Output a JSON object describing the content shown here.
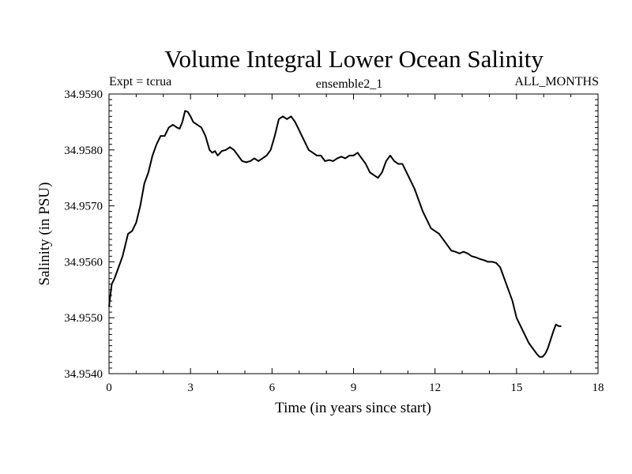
{
  "chart_data": {
    "type": "line",
    "title": "Volume Integral Lower Ocean Salinity",
    "subtitle_left": "Expt = tcrua",
    "subtitle_center": "ensemble2_1",
    "subtitle_right": "ALL_MONTHS",
    "xlabel": "Time (in years since start)",
    "ylabel": "Salinity (in PSU)",
    "xlim": [
      0,
      18
    ],
    "ylim": [
      34.954,
      34.959
    ],
    "x_ticks": [
      0,
      3,
      6,
      9,
      12,
      15,
      18
    ],
    "x_tick_labels": [
      "0",
      "3",
      "6",
      "9",
      "12",
      "15",
      "18"
    ],
    "y_ticks": [
      34.954,
      34.955,
      34.956,
      34.957,
      34.958,
      34.959
    ],
    "y_tick_labels": [
      "34.9540",
      "34.9550",
      "34.9560",
      "34.9570",
      "34.9580",
      "34.9590"
    ],
    "grid": false,
    "series": [
      {
        "name": "Salinity",
        "color": "#000000",
        "x": [
          0,
          0.1,
          0.2,
          0.35,
          0.5,
          0.6,
          0.7,
          0.85,
          1.0,
          1.15,
          1.3,
          1.45,
          1.6,
          1.75,
          1.9,
          2.05,
          2.2,
          2.35,
          2.5,
          2.6,
          2.7,
          2.8,
          2.9,
          3.0,
          3.1,
          3.25,
          3.4,
          3.55,
          3.7,
          3.8,
          3.9,
          4.0,
          4.15,
          4.3,
          4.45,
          4.6,
          4.75,
          4.9,
          5.05,
          5.2,
          5.35,
          5.5,
          5.65,
          5.8,
          5.95,
          6.1,
          6.25,
          6.4,
          6.55,
          6.7,
          6.85,
          6.95,
          7.05,
          7.2,
          7.35,
          7.5,
          7.65,
          7.8,
          7.95,
          8.1,
          8.25,
          8.4,
          8.55,
          8.7,
          8.85,
          9.0,
          9.15,
          9.3,
          9.45,
          9.6,
          9.75,
          9.9,
          10.05,
          10.2,
          10.35,
          10.5,
          10.65,
          10.8,
          10.95,
          11.1,
          11.25,
          11.4,
          11.55,
          11.7,
          11.85,
          12.0,
          12.15,
          12.3,
          12.45,
          12.6,
          12.75,
          12.9,
          13.05,
          13.2,
          13.35,
          13.5,
          13.65,
          13.8,
          13.95,
          14.1,
          14.25,
          14.4,
          14.55,
          14.7,
          14.85,
          15.0,
          15.15,
          15.3,
          15.45,
          15.6,
          15.75,
          15.85,
          15.95,
          16.05,
          16.15,
          16.25,
          16.35,
          16.45,
          16.55,
          16.65
        ],
        "y": [
          34.9552,
          34.9556,
          34.9557,
          34.9559,
          34.9561,
          34.9563,
          34.9565,
          34.95655,
          34.9567,
          34.957,
          34.9574,
          34.9576,
          34.9579,
          34.9581,
          34.95825,
          34.95825,
          34.9584,
          34.95845,
          34.9584,
          34.95838,
          34.9585,
          34.9587,
          34.95868,
          34.9586,
          34.9585,
          34.95845,
          34.9584,
          34.95825,
          34.958,
          34.95795,
          34.95798,
          34.9579,
          34.95798,
          34.958,
          34.95805,
          34.958,
          34.9579,
          34.9578,
          34.95778,
          34.9578,
          34.95785,
          34.9578,
          34.95785,
          34.9579,
          34.958,
          34.95825,
          34.95855,
          34.9586,
          34.95855,
          34.9586,
          34.9585,
          34.9584,
          34.9583,
          34.95815,
          34.958,
          34.95795,
          34.9579,
          34.9579,
          34.9578,
          34.95782,
          34.9578,
          34.95785,
          34.95788,
          34.95785,
          34.9579,
          34.9579,
          34.95795,
          34.95785,
          34.95775,
          34.9576,
          34.95755,
          34.9575,
          34.9576,
          34.9578,
          34.9579,
          34.9578,
          34.95775,
          34.95775,
          34.9576,
          34.95745,
          34.9573,
          34.9571,
          34.9569,
          34.95675,
          34.9566,
          34.95655,
          34.9565,
          34.9564,
          34.9563,
          34.9562,
          34.95618,
          34.95615,
          34.95618,
          34.95615,
          34.9561,
          34.95608,
          34.95605,
          34.95603,
          34.956,
          34.956,
          34.95598,
          34.9559,
          34.9557,
          34.9555,
          34.9553,
          34.955,
          34.95485,
          34.9547,
          34.95455,
          34.95445,
          34.95435,
          34.9543,
          34.9543,
          34.95435,
          34.95445,
          34.9546,
          34.95475,
          34.95488,
          34.95485,
          34.95485
        ]
      }
    ]
  }
}
